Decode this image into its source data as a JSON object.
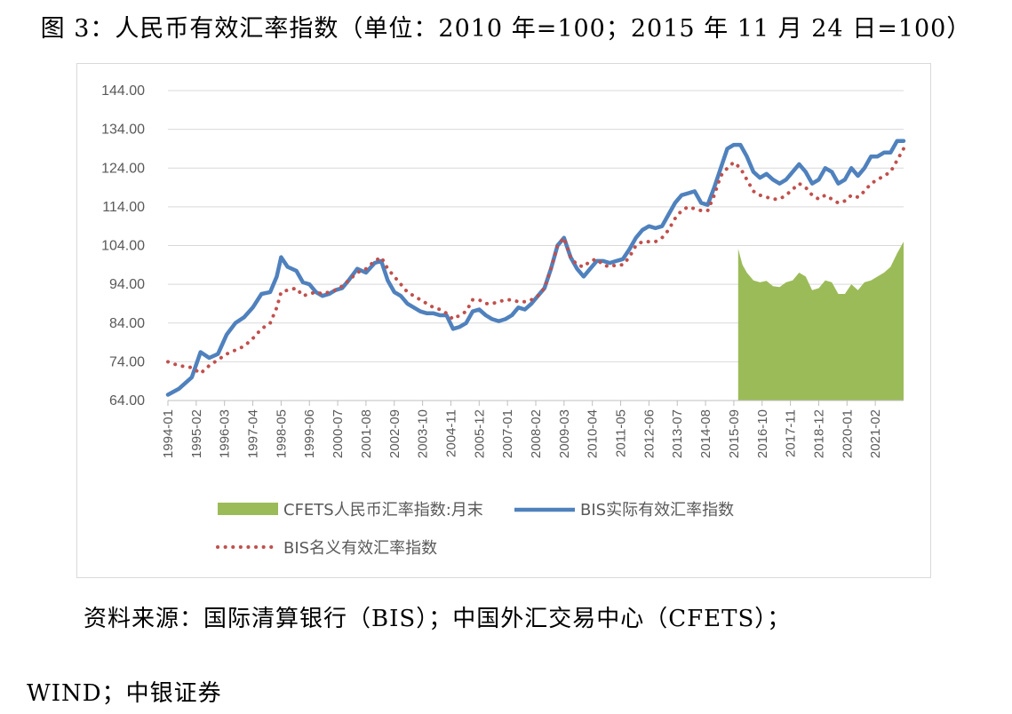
{
  "title": "图 3：人民币有效汇率指数（单位：2010 年=100；2015 年 11 月 24 日=100）",
  "source_line1": "资料来源：国际清算银行（BIS）；中国外汇交易中心（CFETS）；",
  "source_line2": "WIND；中银证券",
  "colors": {
    "cfets": "#9BBB59",
    "bis_real": "#4F81BD",
    "bis_nominal": "#C0504D",
    "grid": "#d9d9d9"
  },
  "chart_data": {
    "type": "line",
    "ylim": [
      64,
      144
    ],
    "yticks": [
      "144.00",
      "134.00",
      "124.00",
      "114.00",
      "104.00",
      "94.00",
      "84.00",
      "74.00",
      "64.00"
    ],
    "xticks": [
      "1994-01",
      "1995-02",
      "1996-03",
      "1997-04",
      "1998-05",
      "1999-06",
      "2000-07",
      "2001-08",
      "2002-09",
      "2003-10",
      "2004-11",
      "2005-12",
      "2007-01",
      "2008-02",
      "2009-03",
      "2010-04",
      "2011-05",
      "2012-06",
      "2013-07",
      "2014-08",
      "2015-09",
      "2016-10",
      "2017-11",
      "2018-12",
      "2020-01",
      "2021-02"
    ],
    "x_range": [
      "1994-01",
      "2022-03"
    ],
    "grid": "horizontal",
    "legend_placement": "bottom",
    "series": [
      {
        "name": "CFETS人民币汇率指数:月末",
        "kind": "area",
        "points": [
          [
            "2015-11",
            103.2
          ],
          [
            "2015-12",
            101
          ],
          [
            "2016-01",
            99
          ],
          [
            "2016-03",
            97
          ],
          [
            "2016-06",
            95
          ],
          [
            "2016-09",
            94.5
          ],
          [
            "2016-12",
            94.9
          ],
          [
            "2017-03",
            93.5
          ],
          [
            "2017-06",
            93.3
          ],
          [
            "2017-09",
            94.5
          ],
          [
            "2017-12",
            95
          ],
          [
            "2018-03",
            97
          ],
          [
            "2018-06",
            96
          ],
          [
            "2018-09",
            92.5
          ],
          [
            "2018-12",
            93
          ],
          [
            "2019-03",
            95
          ],
          [
            "2019-06",
            94.5
          ],
          [
            "2019-09",
            91.5
          ],
          [
            "2019-12",
            91.5
          ],
          [
            "2020-03",
            94
          ],
          [
            "2020-06",
            92.5
          ],
          [
            "2020-09",
            94.5
          ],
          [
            "2020-12",
            95
          ],
          [
            "2021-03",
            96
          ],
          [
            "2021-06",
            97
          ],
          [
            "2021-09",
            98.5
          ],
          [
            "2021-12",
            102
          ],
          [
            "2022-03",
            105
          ]
        ]
      },
      {
        "name": "BIS实际有效汇率指数",
        "kind": "line",
        "points": [
          [
            "1994-01",
            65.5
          ],
          [
            "1994-06",
            67
          ],
          [
            "1994-12",
            70
          ],
          [
            "1995-04",
            76.5
          ],
          [
            "1995-08",
            75
          ],
          [
            "1995-12",
            76
          ],
          [
            "1996-04",
            81
          ],
          [
            "1996-08",
            84
          ],
          [
            "1996-12",
            85.5
          ],
          [
            "1997-04",
            88
          ],
          [
            "1997-08",
            91.5
          ],
          [
            "1997-12",
            92
          ],
          [
            "1998-03",
            96
          ],
          [
            "1998-05",
            101
          ],
          [
            "1998-08",
            98.5
          ],
          [
            "1998-12",
            97.5
          ],
          [
            "1999-03",
            94.5
          ],
          [
            "1999-06",
            94
          ],
          [
            "1999-09",
            92
          ],
          [
            "1999-12",
            91
          ],
          [
            "2000-03",
            91.5
          ],
          [
            "2000-06",
            92.5
          ],
          [
            "2000-09",
            93
          ],
          [
            "2000-12",
            95
          ],
          [
            "2001-04",
            98
          ],
          [
            "2001-08",
            97
          ],
          [
            "2001-12",
            99.5
          ],
          [
            "2002-03",
            100
          ],
          [
            "2002-06",
            95
          ],
          [
            "2002-09",
            92
          ],
          [
            "2002-12",
            91
          ],
          [
            "2003-03",
            89
          ],
          [
            "2003-06",
            88
          ],
          [
            "2003-09",
            87
          ],
          [
            "2003-12",
            86.5
          ],
          [
            "2004-03",
            86.5
          ],
          [
            "2004-06",
            86
          ],
          [
            "2004-09",
            86
          ],
          [
            "2004-12",
            82.5
          ],
          [
            "2005-03",
            83
          ],
          [
            "2005-06",
            84
          ],
          [
            "2005-09",
            87
          ],
          [
            "2005-12",
            87.5
          ],
          [
            "2006-03",
            86
          ],
          [
            "2006-06",
            85
          ],
          [
            "2006-09",
            84.5
          ],
          [
            "2006-12",
            85
          ],
          [
            "2007-03",
            86
          ],
          [
            "2007-06",
            88
          ],
          [
            "2007-09",
            87.5
          ],
          [
            "2007-12",
            89
          ],
          [
            "2008-03",
            91
          ],
          [
            "2008-06",
            93
          ],
          [
            "2008-09",
            98
          ],
          [
            "2008-12",
            104
          ],
          [
            "2009-03",
            106
          ],
          [
            "2009-06",
            101
          ],
          [
            "2009-09",
            98
          ],
          [
            "2009-12",
            96
          ],
          [
            "2010-03",
            98
          ],
          [
            "2010-06",
            100
          ],
          [
            "2010-09",
            100
          ],
          [
            "2010-12",
            99.5
          ],
          [
            "2011-03",
            100
          ],
          [
            "2011-06",
            100.5
          ],
          [
            "2011-09",
            103
          ],
          [
            "2011-12",
            106
          ],
          [
            "2012-03",
            108
          ],
          [
            "2012-06",
            109
          ],
          [
            "2012-09",
            108.5
          ],
          [
            "2012-12",
            109
          ],
          [
            "2013-03",
            112
          ],
          [
            "2013-06",
            115
          ],
          [
            "2013-09",
            117
          ],
          [
            "2013-12",
            117.5
          ],
          [
            "2014-03",
            118
          ],
          [
            "2014-06",
            115
          ],
          [
            "2014-09",
            114.5
          ],
          [
            "2014-12",
            119
          ],
          [
            "2015-03",
            124
          ],
          [
            "2015-06",
            129
          ],
          [
            "2015-09",
            130
          ],
          [
            "2015-12",
            130
          ],
          [
            "2016-03",
            127
          ],
          [
            "2016-06",
            123
          ],
          [
            "2016-09",
            121.5
          ],
          [
            "2016-12",
            122.5
          ],
          [
            "2017-03",
            121
          ],
          [
            "2017-06",
            120
          ],
          [
            "2017-09",
            121
          ],
          [
            "2017-12",
            123
          ],
          [
            "2018-03",
            125
          ],
          [
            "2018-06",
            123
          ],
          [
            "2018-09",
            120
          ],
          [
            "2018-12",
            121
          ],
          [
            "2019-03",
            124
          ],
          [
            "2019-06",
            123
          ],
          [
            "2019-09",
            120
          ],
          [
            "2019-12",
            121
          ],
          [
            "2020-03",
            124
          ],
          [
            "2020-06",
            122
          ],
          [
            "2020-09",
            124
          ],
          [
            "2020-12",
            127
          ],
          [
            "2021-03",
            127
          ],
          [
            "2021-06",
            128
          ],
          [
            "2021-09",
            128
          ],
          [
            "2021-12",
            131
          ],
          [
            "2022-03",
            131
          ]
        ]
      },
      {
        "name": "BIS名义有效汇率指数",
        "kind": "dotted",
        "points": [
          [
            "1994-01",
            74
          ],
          [
            "1994-06",
            73
          ],
          [
            "1994-12",
            72.5
          ],
          [
            "1995-04",
            71
          ],
          [
            "1995-08",
            73
          ],
          [
            "1995-12",
            74.5
          ],
          [
            "1996-04",
            76
          ],
          [
            "1996-08",
            77
          ],
          [
            "1996-12",
            78
          ],
          [
            "1997-04",
            80
          ],
          [
            "1997-08",
            82.5
          ],
          [
            "1997-12",
            84
          ],
          [
            "1998-03",
            88
          ],
          [
            "1998-05",
            92
          ],
          [
            "1998-08",
            92.5
          ],
          [
            "1998-12",
            93
          ],
          [
            "1999-03",
            91
          ],
          [
            "1999-06",
            91.5
          ],
          [
            "1999-09",
            92
          ],
          [
            "1999-12",
            91.5
          ],
          [
            "2000-03",
            92
          ],
          [
            "2000-06",
            92.5
          ],
          [
            "2000-09",
            93.5
          ],
          [
            "2000-12",
            95
          ],
          [
            "2001-04",
            97
          ],
          [
            "2001-08",
            98
          ],
          [
            "2001-12",
            100
          ],
          [
            "2002-03",
            101
          ],
          [
            "2002-06",
            98
          ],
          [
            "2002-09",
            96
          ],
          [
            "2002-12",
            94
          ],
          [
            "2003-03",
            92
          ],
          [
            "2003-06",
            91
          ],
          [
            "2003-09",
            90
          ],
          [
            "2003-12",
            89
          ],
          [
            "2004-03",
            88
          ],
          [
            "2004-06",
            87.5
          ],
          [
            "2004-09",
            86.5
          ],
          [
            "2004-12",
            85
          ],
          [
            "2005-03",
            86
          ],
          [
            "2005-06",
            87
          ],
          [
            "2005-09",
            90
          ],
          [
            "2005-12",
            90
          ],
          [
            "2006-03",
            89
          ],
          [
            "2006-06",
            89
          ],
          [
            "2006-09",
            89.5
          ],
          [
            "2006-12",
            90
          ],
          [
            "2007-03",
            90
          ],
          [
            "2007-06",
            89.5
          ],
          [
            "2007-09",
            89.5
          ],
          [
            "2007-12",
            90
          ],
          [
            "2008-03",
            91
          ],
          [
            "2008-06",
            93
          ],
          [
            "2008-09",
            98
          ],
          [
            "2008-12",
            104
          ],
          [
            "2009-03",
            106
          ],
          [
            "2009-06",
            101
          ],
          [
            "2009-09",
            99
          ],
          [
            "2009-12",
            98.5
          ],
          [
            "2010-03",
            100
          ],
          [
            "2010-06",
            100.5
          ],
          [
            "2010-09",
            99
          ],
          [
            "2010-12",
            98.5
          ],
          [
            "2011-03",
            99
          ],
          [
            "2011-06",
            99
          ],
          [
            "2011-09",
            101
          ],
          [
            "2011-12",
            104
          ],
          [
            "2012-03",
            105
          ],
          [
            "2012-06",
            105
          ],
          [
            "2012-09",
            105
          ],
          [
            "2012-12",
            106
          ],
          [
            "2013-03",
            108
          ],
          [
            "2013-06",
            111
          ],
          [
            "2013-09",
            113
          ],
          [
            "2013-12",
            114
          ],
          [
            "2014-03",
            113.5
          ],
          [
            "2014-06",
            113
          ],
          [
            "2014-09",
            113
          ],
          [
            "2014-12",
            117
          ],
          [
            "2015-03",
            122
          ],
          [
            "2015-06",
            124
          ],
          [
            "2015-09",
            125.5
          ],
          [
            "2015-12",
            124
          ],
          [
            "2016-03",
            121
          ],
          [
            "2016-06",
            118
          ],
          [
            "2016-09",
            117
          ],
          [
            "2016-12",
            116.5
          ],
          [
            "2017-03",
            116
          ],
          [
            "2017-06",
            116
          ],
          [
            "2017-09",
            117
          ],
          [
            "2017-12",
            118.5
          ],
          [
            "2018-03",
            120
          ],
          [
            "2018-06",
            119
          ],
          [
            "2018-09",
            117
          ],
          [
            "2018-12",
            116
          ],
          [
            "2019-03",
            117
          ],
          [
            "2019-06",
            116
          ],
          [
            "2019-09",
            115
          ],
          [
            "2019-12",
            115.5
          ],
          [
            "2020-03",
            117
          ],
          [
            "2020-06",
            116.5
          ],
          [
            "2020-09",
            118
          ],
          [
            "2020-12",
            120
          ],
          [
            "2021-03",
            121
          ],
          [
            "2021-06",
            122
          ],
          [
            "2021-09",
            123
          ],
          [
            "2021-12",
            126
          ],
          [
            "2022-03",
            129
          ]
        ]
      }
    ]
  }
}
